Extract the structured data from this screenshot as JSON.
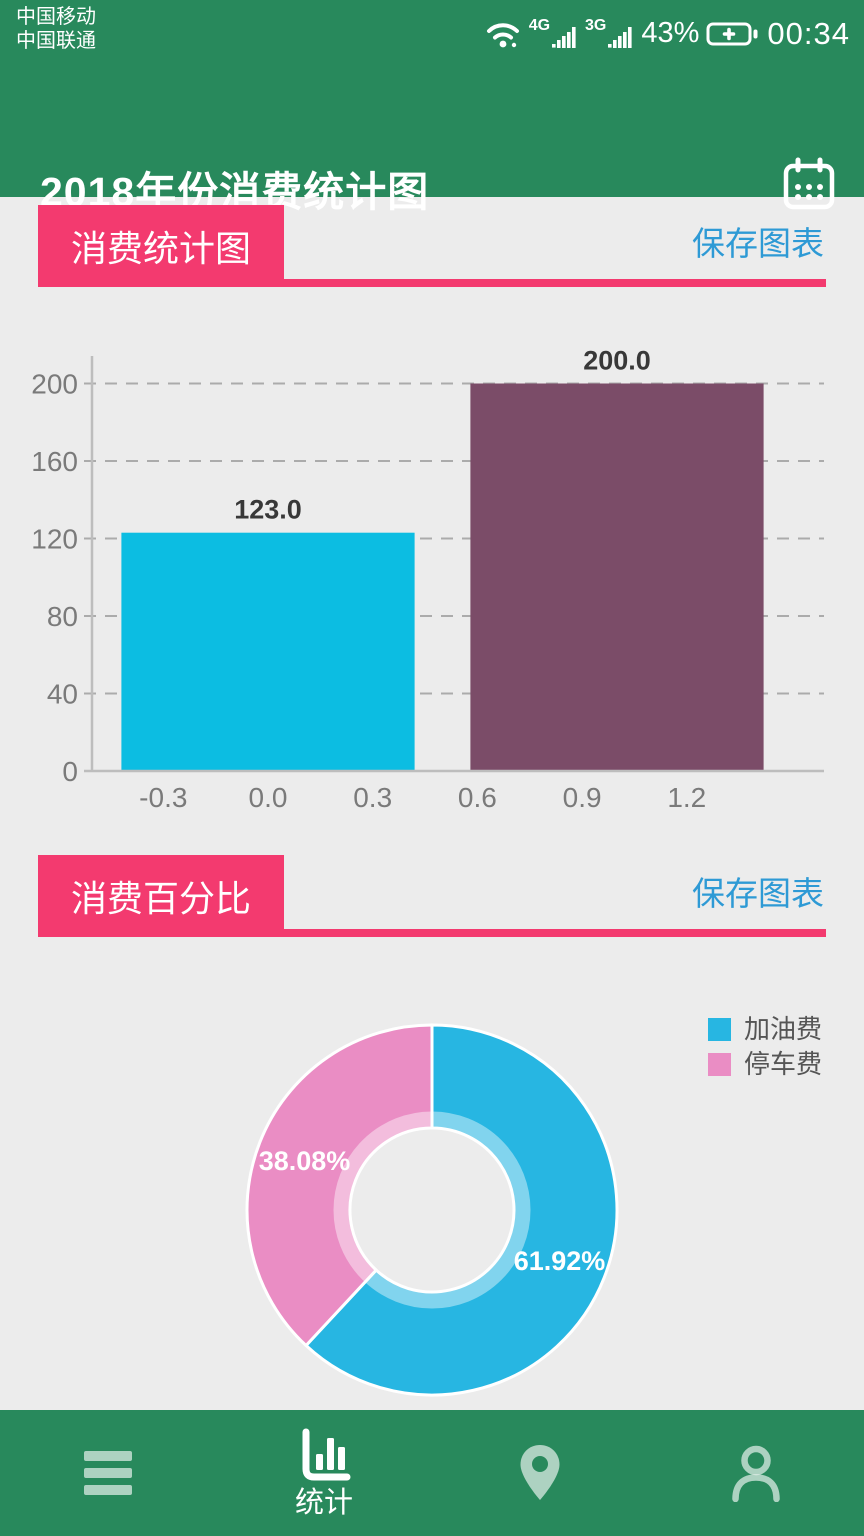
{
  "status_bar": {
    "carrier_line1": "中国移动",
    "carrier_line2": "中国联通",
    "network_badges": [
      "4G",
      "3G"
    ],
    "battery_percent": "43%",
    "time": "00:34"
  },
  "header": {
    "title": "2018年份消费统计图"
  },
  "cards": [
    {
      "title": "消费统计图",
      "action_label": "保存图表"
    },
    {
      "title": "消费百分比",
      "action_label": "保存图表"
    }
  ],
  "colors": {
    "green": "#28895C",
    "header_pink": "#F33A6F",
    "link_blue": "#2E9AD5",
    "bar_cyan": "#0CBDE2",
    "bar_purple": "#7B4C68",
    "pie_cyan": "#27B6E2",
    "pie_pink": "#EA8DC4",
    "background": "#ECECEC"
  },
  "chart_data": [
    {
      "type": "bar",
      "title": "消费统计图",
      "y_ticks": [
        0,
        40,
        80,
        120,
        160,
        200
      ],
      "x_ticks": [
        -0.3,
        0.0,
        0.3,
        0.6,
        0.9,
        1.2
      ],
      "ylim": [
        0,
        215
      ],
      "xlim": [
        -0.5,
        1.52
      ],
      "grid": true,
      "bar_width": 0.84,
      "bars": [
        {
          "x": 0,
          "value": 123.0,
          "label": "123.0",
          "color_key": "bar_cyan"
        },
        {
          "x": 1,
          "value": 200.0,
          "label": "200.0",
          "color_key": "bar_purple"
        }
      ]
    },
    {
      "type": "pie",
      "title": "消费百分比",
      "donut": true,
      "start_angle": -90,
      "legend_position": "top-right",
      "slices": [
        {
          "name": "加油费",
          "percent": 61.92,
          "label": "61.92%",
          "color_key": "pie_cyan"
        },
        {
          "name": "停车费",
          "percent": 38.08,
          "label": "38.08%",
          "color_key": "pie_pink"
        }
      ]
    }
  ],
  "bottom_nav": {
    "items": [
      {
        "id": "menu",
        "icon": "hamburger-icon",
        "label": "",
        "active": false
      },
      {
        "id": "stats",
        "icon": "bar-chart-icon",
        "label": "统计",
        "active": true
      },
      {
        "id": "location",
        "icon": "location-pin-icon",
        "label": "",
        "active": false
      },
      {
        "id": "profile",
        "icon": "person-icon",
        "label": "",
        "active": false
      }
    ]
  }
}
